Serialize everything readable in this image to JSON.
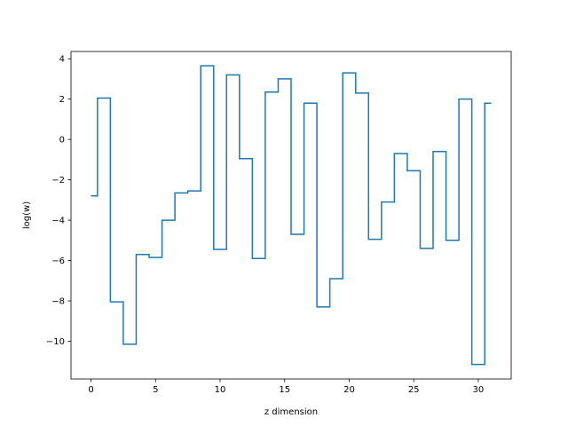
{
  "chart_data": {
    "type": "line",
    "drawstyle": "steps-mid",
    "title": "",
    "xlabel": "z dimension",
    "ylabel": "log(w)",
    "xlim": [
      -1.55,
      32.55
    ],
    "ylim": [
      -11.87,
      4.36
    ],
    "xticks": [
      0,
      5,
      10,
      15,
      20,
      25,
      30
    ],
    "xtick_labels": [
      "0",
      "5",
      "10",
      "15",
      "20",
      "25",
      "30"
    ],
    "yticks": [
      -10,
      -8,
      -6,
      -4,
      -2,
      0,
      2,
      4
    ],
    "ytick_labels": [
      "−10",
      "−8",
      "−6",
      "−4",
      "−2",
      "0",
      "2",
      "4"
    ],
    "grid": false,
    "legend": "none",
    "series": [
      {
        "color": "#1f77b4",
        "x": [
          0,
          1,
          2,
          3,
          4,
          5,
          6,
          7,
          8,
          9,
          10,
          11,
          12,
          13,
          14,
          15,
          16,
          17,
          18,
          19,
          20,
          21,
          22,
          23,
          24,
          25,
          26,
          27,
          28,
          29,
          30,
          31
        ],
        "y": [
          -2.8,
          2.05,
          -8.05,
          -10.15,
          -5.7,
          -5.85,
          -4.0,
          -2.65,
          -2.55,
          3.65,
          -5.45,
          3.2,
          -0.95,
          -5.9,
          2.35,
          3.0,
          -4.7,
          1.8,
          -8.3,
          -6.9,
          3.3,
          2.3,
          -4.95,
          -3.1,
          -0.7,
          -1.55,
          -5.4,
          -0.6,
          -5.0,
          2.0,
          -11.15,
          1.8
        ]
      }
    ]
  }
}
